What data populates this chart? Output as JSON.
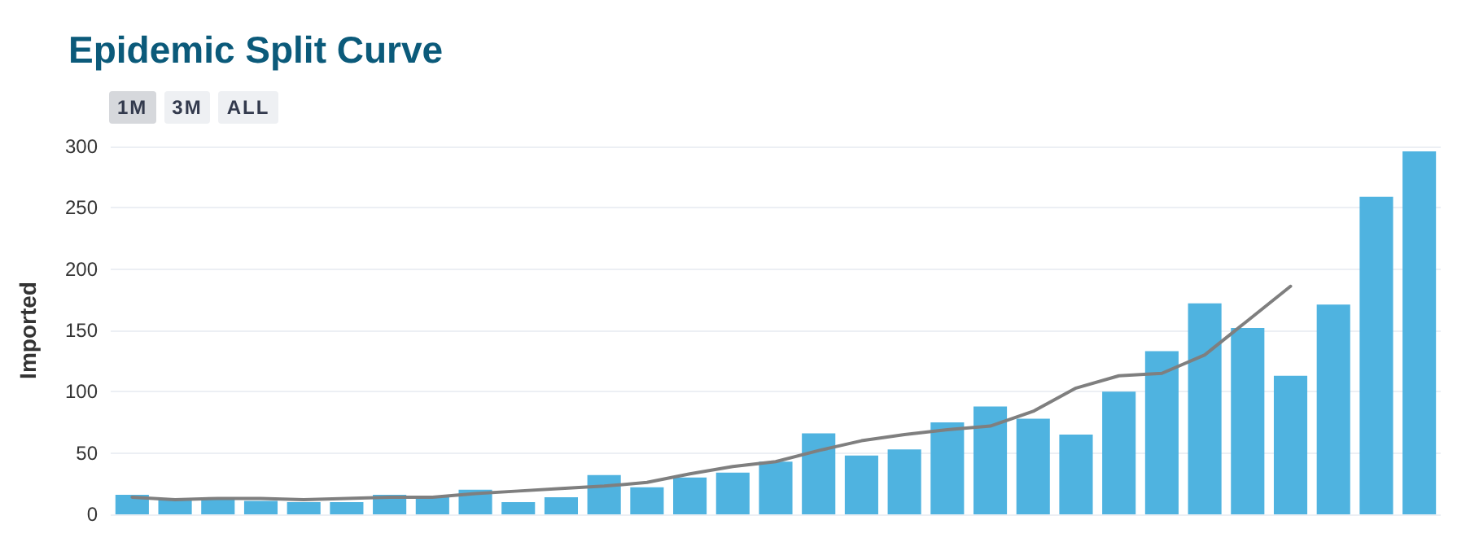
{
  "chart_data": {
    "type": "bar",
    "title": "Epidemic Split Curve",
    "ylabel": "Imported",
    "annotations": [
      "1M",
      "3M",
      "ALL"
    ],
    "categories": [
      null,
      null,
      null,
      null,
      null,
      null,
      null,
      null,
      null,
      null,
      null,
      null,
      null,
      null,
      null,
      null,
      null,
      null,
      null,
      null,
      null,
      null,
      null,
      null,
      null,
      null,
      null,
      null,
      null,
      null,
      null
    ],
    "series": [
      {
        "color": "#4fb3e0",
        "values": [
          16,
          12,
          14,
          11,
          10,
          10,
          16,
          14,
          20,
          10,
          14,
          32,
          22,
          30,
          34,
          43,
          66,
          48,
          53,
          75,
          88,
          78,
          65,
          100,
          133,
          172,
          152,
          113,
          171,
          259,
          296
        ]
      },
      {
        "type": "line",
        "color": "#7f7f7f",
        "values": [
          14,
          12,
          13,
          13,
          12,
          13,
          14,
          14,
          17,
          19,
          21,
          23,
          26,
          33,
          39,
          43,
          52,
          60,
          65,
          69,
          72,
          84,
          103,
          113,
          115,
          130,
          158,
          186,
          null,
          null,
          null
        ]
      }
    ],
    "ylim": [
      0,
      300
    ],
    "yticks": [
      0,
      50,
      100,
      150,
      200,
      250,
      300
    ],
    "grid": "y",
    "marker": "none",
    "line_style": "solid"
  }
}
